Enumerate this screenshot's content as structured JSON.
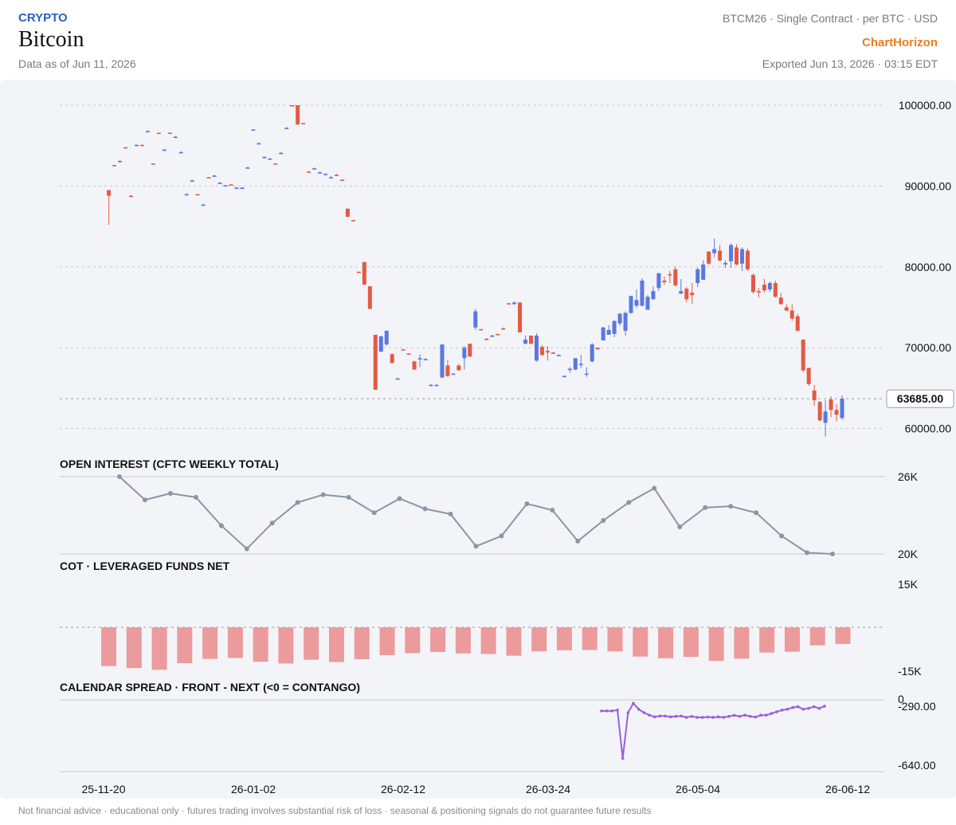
{
  "header": {
    "category": "CRYPTO",
    "title": "Bitcoin",
    "as_of": "Data as of Jun 11, 2026",
    "contract": "BTCM26 · Single Contract · per BTC · USD",
    "brand": "ChartHorizon",
    "exported": "Exported Jun 13, 2026 · 03:15 EDT"
  },
  "footer": {
    "disclaimer": "Not financial advice · educational only · futures trading involves substantial risk of loss · seasonal & positioning signals do not guarantee future results"
  },
  "colors": {
    "up": "#5b78e0",
    "down": "#e35a44",
    "oi_line": "#8a96a6",
    "cot_bar": "#eb9b9c",
    "spread_line": "#9a5ee0",
    "panel_bg": "#f3f4f8"
  },
  "chart_data": [
    {
      "type": "candlestick",
      "title": "",
      "last_price": 63685.0,
      "last_price_label": "63685.00",
      "y_ticks": [
        100000,
        90000,
        80000,
        70000,
        60000
      ],
      "y_tick_labels": [
        "100000.00",
        "90000.00",
        "80000.00",
        "70000.00",
        "60000.00"
      ],
      "x_tick_labels": [
        "25-11-20",
        "26-01-02",
        "26-02-12",
        "26-03-24",
        "26-05-04",
        "26-06-12"
      ],
      "grid": true,
      "ohlc": [
        [
          89500,
          89500,
          85200,
          88800
        ],
        [
          92600,
          92600,
          92500,
          92500
        ],
        [
          93100,
          93200,
          93000,
          93100
        ],
        [
          94800,
          94800,
          94700,
          94700
        ],
        [
          88800,
          88900,
          88700,
          88700
        ],
        [
          95000,
          95100,
          94900,
          95100
        ],
        [
          95100,
          95100,
          95000,
          95000
        ],
        [
          96800,
          96900,
          96700,
          96800
        ],
        [
          92800,
          92800,
          92700,
          92700
        ],
        [
          96600,
          96600,
          96500,
          96500
        ],
        [
          94500,
          94600,
          94400,
          94500
        ],
        [
          96600,
          96600,
          96500,
          96500
        ],
        [
          96100,
          96200,
          96000,
          96100
        ],
        [
          94200,
          94300,
          94100,
          94200
        ],
        [
          89000,
          89100,
          88900,
          89000
        ],
        [
          90700,
          90800,
          90600,
          90700
        ],
        [
          89000,
          89000,
          88900,
          88900
        ],
        [
          87700,
          87800,
          87600,
          87700
        ],
        [
          91100,
          91100,
          91000,
          91000
        ],
        [
          91300,
          91400,
          91200,
          91300
        ],
        [
          90400,
          90500,
          90300,
          90400
        ],
        [
          90000,
          90100,
          90000,
          90100
        ],
        [
          90200,
          90200,
          90100,
          90100
        ],
        [
          89800,
          89900,
          89700,
          89800
        ],
        [
          89800,
          89900,
          89700,
          89800
        ],
        [
          92300,
          92400,
          92200,
          92300
        ],
        [
          97000,
          97000,
          96900,
          97000
        ],
        [
          95300,
          95400,
          95200,
          95300
        ],
        [
          93600,
          93700,
          93500,
          93600
        ],
        [
          93400,
          93500,
          93300,
          93400
        ],
        [
          92800,
          92800,
          92700,
          92700
        ],
        [
          94100,
          94200,
          94000,
          94100
        ],
        [
          97200,
          97300,
          97100,
          97200
        ],
        [
          100000,
          100000,
          99900,
          99900
        ],
        [
          100000,
          100000,
          97600,
          97600
        ],
        [
          97800,
          97800,
          97700,
          97700
        ],
        [
          91800,
          91800,
          91700,
          91700
        ],
        [
          92200,
          92300,
          92100,
          92200
        ],
        [
          91700,
          91800,
          91600,
          91700
        ],
        [
          91500,
          91600,
          91400,
          91500
        ],
        [
          91100,
          91200,
          91000,
          91100
        ],
        [
          91400,
          91500,
          91300,
          91300
        ],
        [
          90800,
          90800,
          90700,
          90700
        ],
        [
          87200,
          87200,
          86200,
          86200
        ],
        [
          85800,
          85800,
          85700,
          85700
        ],
        [
          79400,
          79400,
          79300,
          79300
        ],
        [
          80600,
          80600,
          77800,
          77800
        ],
        [
          77600,
          77600,
          74800,
          74800
        ],
        [
          71600,
          71600,
          64800,
          64800
        ],
        [
          69500,
          71500,
          69500,
          71400
        ],
        [
          70400,
          72100,
          70200,
          72100
        ],
        [
          69200,
          69300,
          68100,
          68100
        ],
        [
          66200,
          66300,
          66100,
          66200
        ],
        [
          69800,
          69800,
          69700,
          69700
        ],
        [
          69300,
          69300,
          69200,
          69200
        ],
        [
          68300,
          68400,
          67300,
          67300
        ],
        [
          68700,
          69200,
          67600,
          68700
        ],
        [
          68600,
          68700,
          68500,
          68600
        ],
        [
          65400,
          65500,
          65300,
          65400
        ],
        [
          65400,
          65500,
          65300,
          65400
        ],
        [
          66300,
          70400,
          66300,
          70400
        ],
        [
          67800,
          68500,
          66400,
          66500
        ],
        [
          66800,
          66800,
          66700,
          66800
        ],
        [
          67800,
          68000,
          67200,
          67200
        ],
        [
          68700,
          70200,
          67300,
          70000
        ],
        [
          70500,
          70500,
          68900,
          68900
        ],
        [
          72500,
          74800,
          72200,
          74500
        ],
        [
          72300,
          72300,
          72200,
          72200
        ],
        [
          71100,
          71200,
          71000,
          71000
        ],
        [
          71500,
          71600,
          71400,
          71500
        ],
        [
          71700,
          71700,
          71600,
          71600
        ],
        [
          72400,
          72500,
          72300,
          72300
        ],
        [
          75500,
          75500,
          75400,
          75400
        ],
        [
          75400,
          75700,
          75300,
          75600
        ],
        [
          75600,
          75600,
          71900,
          71900
        ],
        [
          70500,
          71500,
          70400,
          71000
        ],
        [
          71500,
          71500,
          70400,
          70500
        ],
        [
          68400,
          71800,
          68300,
          71500
        ],
        [
          70100,
          70300,
          69000,
          69100
        ],
        [
          69600,
          70200,
          68400,
          69400
        ],
        [
          69400,
          69500,
          69300,
          69300
        ],
        [
          69100,
          69200,
          69000,
          69100
        ],
        [
          66500,
          66600,
          66400,
          66500
        ],
        [
          67300,
          67600,
          66900,
          67400
        ],
        [
          67300,
          68700,
          67200,
          68700
        ],
        [
          68000,
          69100,
          67500,
          68000
        ],
        [
          66800,
          67600,
          66400,
          66800
        ],
        [
          68300,
          70600,
          68200,
          70400
        ],
        [
          70000,
          70000,
          69800,
          69800
        ],
        [
          70900,
          72600,
          70900,
          72500
        ],
        [
          71600,
          72800,
          71600,
          72200
        ],
        [
          71700,
          73400,
          71300,
          73300
        ],
        [
          73000,
          74300,
          72700,
          74200
        ],
        [
          72100,
          74500,
          71500,
          74300
        ],
        [
          74300,
          76400,
          74200,
          76400
        ],
        [
          75200,
          77200,
          74900,
          75900
        ],
        [
          75200,
          78600,
          75100,
          78300
        ],
        [
          74700,
          76500,
          74700,
          76300
        ],
        [
          76000,
          77600,
          75900,
          77000
        ],
        [
          77400,
          79300,
          77000,
          79200
        ],
        [
          78300,
          78800,
          77800,
          78100
        ],
        [
          79100,
          79500,
          78000,
          79000
        ],
        [
          79700,
          80000,
          77600,
          77700
        ],
        [
          76700,
          78500,
          76600,
          77000
        ],
        [
          77300,
          77500,
          75600,
          76000
        ],
        [
          76800,
          78000,
          75400,
          76500
        ],
        [
          78000,
          79900,
          77500,
          79700
        ],
        [
          78400,
          80800,
          78400,
          80300
        ],
        [
          81900,
          81900,
          80300,
          80400
        ],
        [
          81700,
          83500,
          81200,
          82200
        ],
        [
          82000,
          82700,
          80700,
          80800
        ],
        [
          80300,
          80800,
          79900,
          80500
        ],
        [
          80700,
          82900,
          79900,
          82700
        ],
        [
          82400,
          82800,
          80200,
          80300
        ],
        [
          80400,
          82400,
          79500,
          82200
        ],
        [
          82000,
          82300,
          79500,
          79700
        ],
        [
          79000,
          79200,
          76700,
          76900
        ],
        [
          77000,
          77400,
          76200,
          76900
        ],
        [
          77800,
          78500,
          76800,
          77100
        ],
        [
          77200,
          78200,
          76900,
          78000
        ],
        [
          78000,
          78300,
          76200,
          76300
        ],
        [
          76200,
          76800,
          75300,
          75400
        ],
        [
          75000,
          75400,
          74500,
          74600
        ],
        [
          74600,
          75400,
          73300,
          73600
        ],
        [
          73900,
          74200,
          72000,
          72100
        ],
        [
          71000,
          71000,
          67000,
          67200
        ],
        [
          67500,
          67500,
          65300,
          65500
        ],
        [
          64700,
          65400,
          62800,
          63500
        ],
        [
          63300,
          63400,
          60900,
          61000
        ],
        [
          60700,
          63500,
          59000,
          62100
        ],
        [
          63600,
          64000,
          61400,
          62300
        ],
        [
          62300,
          63000,
          60900,
          61700
        ],
        [
          61300,
          64100,
          61100,
          63700
        ]
      ],
      "first_candle_x": 136.6,
      "last_candle_x": 1057.0
    },
    {
      "type": "line",
      "title": "OPEN INTEREST (CFTC WEEKLY TOTAL)",
      "y_ticks": [
        26000,
        20000
      ],
      "y_tick_labels": [
        "26K",
        "20K"
      ],
      "values": [
        26000,
        24200,
        24700,
        24400,
        22200,
        20400,
        22400,
        24000,
        24600,
        24400,
        23200,
        24300,
        23500,
        23100,
        20600,
        21400,
        23900,
        23400,
        21000,
        22600,
        24000,
        25100,
        22100,
        23600,
        23700,
        23200,
        21400,
        20100,
        20000
      ]
    },
    {
      "type": "bar",
      "title": "COT · LEVERAGED FUNDS NET",
      "y_ticks": [
        15000,
        -15000
      ],
      "y_tick_labels": [
        "15K",
        "-15K"
      ],
      "values": [
        -13500,
        -14200,
        -14800,
        -12500,
        -11000,
        -10700,
        -12000,
        -12600,
        -11300,
        -12100,
        -11100,
        -9700,
        -9000,
        -8600,
        -9100,
        -9300,
        -9900,
        -8400,
        -8000,
        -7900,
        -8400,
        -10200,
        -10800,
        -10300,
        -11700,
        -10900,
        -8800,
        -8500,
        -6300,
        -5800
      ]
    },
    {
      "type": "line",
      "title": "CALENDAR SPREAD · FRONT - NEXT (<0 = CONTANGO)",
      "y_ticks": [
        0,
        -290,
        -640
      ],
      "y_tick_labels": [
        "0",
        "-290.00",
        "-640.00"
      ],
      "values": [
        -320,
        -320,
        -320,
        -315,
        -600,
        -330,
        -275,
        -310,
        -330,
        -345,
        -355,
        -350,
        -350,
        -355,
        -352,
        -350,
        -358,
        -352,
        -358,
        -358,
        -356,
        -358,
        -355,
        -358,
        -352,
        -346,
        -352,
        -345,
        -352,
        -356,
        -345,
        -345,
        -335,
        -325,
        -315,
        -310,
        -300,
        -295,
        -310,
        -305,
        -295,
        -305,
        -292
      ]
    }
  ]
}
